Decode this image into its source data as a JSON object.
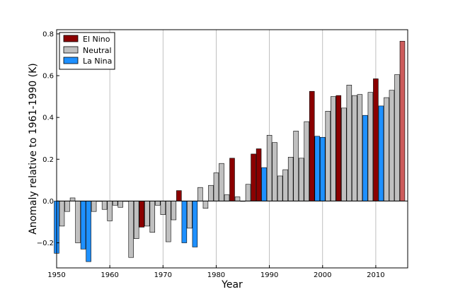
{
  "chart_data": {
    "type": "bar",
    "xlabel": "Year",
    "ylabel": "Anomaly relative to 1961-1990 (K)",
    "xlim": [
      1950,
      2016
    ],
    "ylim": [
      -0.32,
      0.82
    ],
    "x_ticks": [
      1950,
      1960,
      1970,
      1980,
      1990,
      2000,
      2010
    ],
    "y_ticks": [
      -0.2,
      0.0,
      0.2,
      0.4,
      0.6,
      0.8
    ],
    "y_tick_labels": [
      "−0.2",
      "0.0",
      "0.2",
      "0.4",
      "0.6",
      "0.8"
    ],
    "grid": "vertical lines at x ticks",
    "legend_position": "top-left",
    "legend": [
      {
        "label": "El Nino",
        "color": "#8b0000"
      },
      {
        "label": "Neutral",
        "color": "#c0c0c0"
      },
      {
        "label": "La Nina",
        "color": "#1e90ff"
      }
    ],
    "latest_year_color": "#cd5c5c",
    "bars": [
      {
        "year": 1950,
        "value": -0.25,
        "phase": "La Nina"
      },
      {
        "year": 1951,
        "value": -0.12,
        "phase": "Neutral"
      },
      {
        "year": 1952,
        "value": -0.05,
        "phase": "Neutral"
      },
      {
        "year": 1953,
        "value": 0.015,
        "phase": "Neutral"
      },
      {
        "year": 1954,
        "value": -0.2,
        "phase": "Neutral"
      },
      {
        "year": 1955,
        "value": -0.23,
        "phase": "La Nina"
      },
      {
        "year": 1956,
        "value": -0.29,
        "phase": "La Nina"
      },
      {
        "year": 1957,
        "value": -0.05,
        "phase": "Neutral"
      },
      {
        "year": 1958,
        "value": 0.0,
        "phase": "Neutral"
      },
      {
        "year": 1959,
        "value": -0.04,
        "phase": "Neutral"
      },
      {
        "year": 1960,
        "value": -0.095,
        "phase": "Neutral"
      },
      {
        "year": 1961,
        "value": -0.02,
        "phase": "Neutral"
      },
      {
        "year": 1962,
        "value": -0.03,
        "phase": "Neutral"
      },
      {
        "year": 1963,
        "value": 0.0,
        "phase": "Neutral"
      },
      {
        "year": 1964,
        "value": -0.27,
        "phase": "Neutral"
      },
      {
        "year": 1965,
        "value": -0.18,
        "phase": "Neutral"
      },
      {
        "year": 1966,
        "value": -0.125,
        "phase": "El Nino"
      },
      {
        "year": 1967,
        "value": -0.12,
        "phase": "Neutral"
      },
      {
        "year": 1968,
        "value": -0.15,
        "phase": "Neutral"
      },
      {
        "year": 1969,
        "value": -0.02,
        "phase": "Neutral"
      },
      {
        "year": 1970,
        "value": -0.065,
        "phase": "Neutral"
      },
      {
        "year": 1971,
        "value": -0.195,
        "phase": "Neutral"
      },
      {
        "year": 1972,
        "value": -0.09,
        "phase": "Neutral"
      },
      {
        "year": 1973,
        "value": 0.05,
        "phase": "El Nino"
      },
      {
        "year": 1974,
        "value": -0.2,
        "phase": "La Nina"
      },
      {
        "year": 1975,
        "value": -0.13,
        "phase": "Neutral"
      },
      {
        "year": 1976,
        "value": -0.22,
        "phase": "La Nina"
      },
      {
        "year": 1977,
        "value": 0.065,
        "phase": "Neutral"
      },
      {
        "year": 1978,
        "value": -0.035,
        "phase": "Neutral"
      },
      {
        "year": 1979,
        "value": 0.075,
        "phase": "Neutral"
      },
      {
        "year": 1980,
        "value": 0.135,
        "phase": "Neutral"
      },
      {
        "year": 1981,
        "value": 0.18,
        "phase": "Neutral"
      },
      {
        "year": 1982,
        "value": 0.03,
        "phase": "Neutral"
      },
      {
        "year": 1983,
        "value": 0.205,
        "phase": "El Nino"
      },
      {
        "year": 1984,
        "value": 0.02,
        "phase": "Neutral"
      },
      {
        "year": 1985,
        "value": 0.0,
        "phase": "Neutral"
      },
      {
        "year": 1986,
        "value": 0.08,
        "phase": "Neutral"
      },
      {
        "year": 1987,
        "value": 0.225,
        "phase": "El Nino"
      },
      {
        "year": 1988,
        "value": 0.25,
        "phase": "El Nino"
      },
      {
        "year": 1989,
        "value": 0.16,
        "phase": "La Nina"
      },
      {
        "year": 1990,
        "value": 0.315,
        "phase": "Neutral"
      },
      {
        "year": 1991,
        "value": 0.28,
        "phase": "Neutral"
      },
      {
        "year": 1992,
        "value": 0.12,
        "phase": "Neutral"
      },
      {
        "year": 1993,
        "value": 0.15,
        "phase": "Neutral"
      },
      {
        "year": 1994,
        "value": 0.21,
        "phase": "Neutral"
      },
      {
        "year": 1995,
        "value": 0.335,
        "phase": "Neutral"
      },
      {
        "year": 1996,
        "value": 0.205,
        "phase": "Neutral"
      },
      {
        "year": 1997,
        "value": 0.38,
        "phase": "Neutral"
      },
      {
        "year": 1998,
        "value": 0.525,
        "phase": "El Nino"
      },
      {
        "year": 1999,
        "value": 0.31,
        "phase": "La Nina"
      },
      {
        "year": 2000,
        "value": 0.305,
        "phase": "La Nina"
      },
      {
        "year": 2001,
        "value": 0.43,
        "phase": "Neutral"
      },
      {
        "year": 2002,
        "value": 0.5,
        "phase": "Neutral"
      },
      {
        "year": 2003,
        "value": 0.505,
        "phase": "El Nino"
      },
      {
        "year": 2004,
        "value": 0.445,
        "phase": "Neutral"
      },
      {
        "year": 2005,
        "value": 0.555,
        "phase": "Neutral"
      },
      {
        "year": 2006,
        "value": 0.505,
        "phase": "Neutral"
      },
      {
        "year": 2007,
        "value": 0.51,
        "phase": "Neutral"
      },
      {
        "year": 2008,
        "value": 0.41,
        "phase": "La Nina"
      },
      {
        "year": 2009,
        "value": 0.52,
        "phase": "Neutral"
      },
      {
        "year": 2010,
        "value": 0.585,
        "phase": "El Nino"
      },
      {
        "year": 2011,
        "value": 0.455,
        "phase": "La Nina"
      },
      {
        "year": 2012,
        "value": 0.495,
        "phase": "Neutral"
      },
      {
        "year": 2013,
        "value": 0.53,
        "phase": "Neutral"
      },
      {
        "year": 2014,
        "value": 0.605,
        "phase": "Neutral"
      },
      {
        "year": 2015,
        "value": 0.765,
        "phase": "El Nino",
        "latest": true
      }
    ]
  }
}
